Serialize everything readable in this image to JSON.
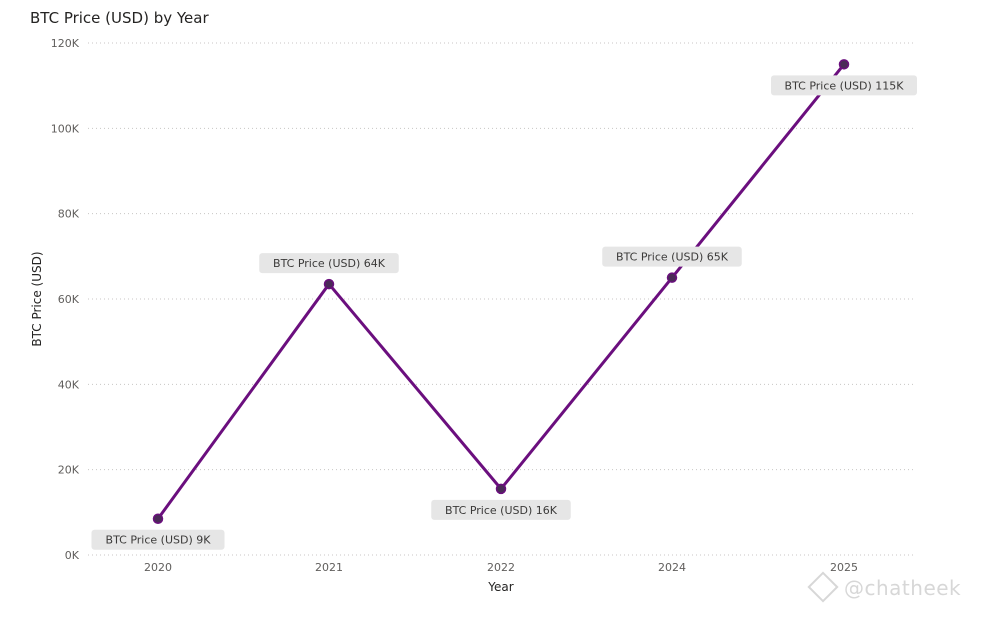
{
  "chart_data": {
    "type": "line",
    "title": "BTC Price (USD) by Year",
    "xlabel": "Year",
    "ylabel": "BTC Price (USD)",
    "categories": [
      "2020",
      "2021",
      "2022",
      "2024",
      "2025"
    ],
    "values": [
      8500,
      63500,
      15500,
      65000,
      115000
    ],
    "data_labels": [
      "BTC Price (USD) 9K",
      "BTC Price (USD) 64K",
      "BTC Price (USD) 16K",
      "BTC Price (USD) 65K",
      "BTC Price (USD) 115K"
    ],
    "label_positions": [
      "below",
      "above",
      "below",
      "above",
      "below"
    ],
    "ylim": [
      0,
      120000
    ],
    "yticks": [
      0,
      20000,
      40000,
      60000,
      80000,
      100000,
      120000
    ],
    "ytick_labels": [
      "0K",
      "20K",
      "40K",
      "60K",
      "80K",
      "100K",
      "120K"
    ],
    "grid": "horizontal-dotted",
    "line_color": "#6b0f7e",
    "marker_color": "#4a2a57"
  },
  "watermark": {
    "icon": "diamond-logo-icon",
    "text": "@chatheek"
  }
}
